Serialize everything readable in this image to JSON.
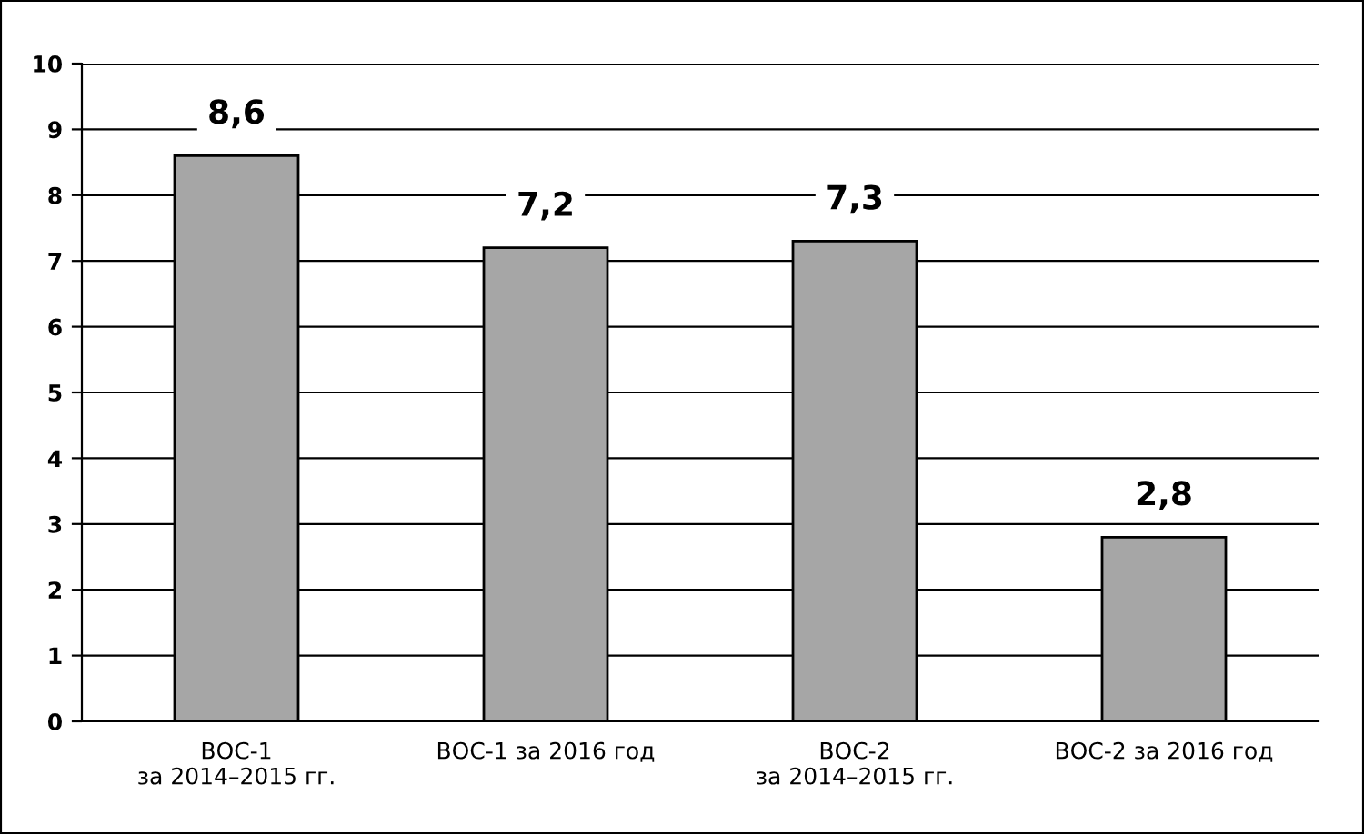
{
  "chart_data": {
    "type": "bar",
    "categories": [
      "ВОС-1\nза 2014–2015 гг.",
      "ВОС-1 за 2016 год",
      "ВОС-2\nза 2014–2015 гг.",
      "ВОС-2 за 2016 год"
    ],
    "values": [
      8.6,
      7.2,
      7.3,
      2.8
    ],
    "value_labels": [
      "8,6",
      "7,2",
      "7,3",
      "2,8"
    ],
    "color": "#a6a6a6",
    "ylim": [
      0,
      10
    ],
    "yticks": [
      0,
      1,
      2,
      3,
      4,
      5,
      6,
      7,
      8,
      9,
      10
    ],
    "grid": "y",
    "legend": false
  }
}
